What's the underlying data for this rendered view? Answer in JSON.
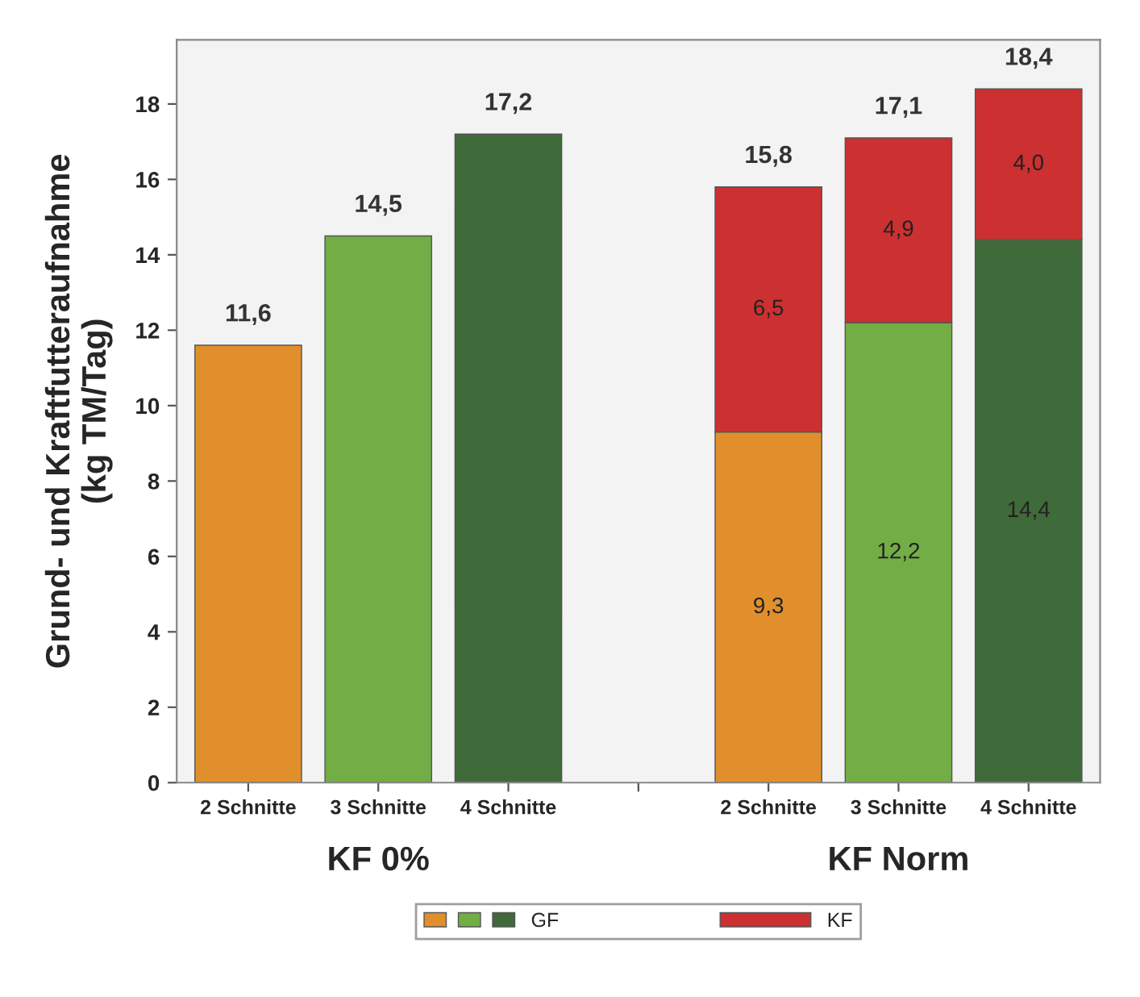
{
  "chart_data": {
    "type": "bar",
    "stacked": true,
    "ylabel": "Grund- und Kraftfutteraufnahme\n(kg TM/Tag)",
    "categories": [
      "2 Schnitte",
      "3 Schnitte",
      "4 Schnitte",
      null,
      "2 Schnitte",
      "3 Schnitte",
      "4 Schnitte"
    ],
    "series": [
      {
        "name": "GF",
        "colors": [
          "#e08f2c",
          "#72ad45",
          "#3f6a3a",
          null,
          "#e08f2c",
          "#72ad45",
          "#3f6a3a"
        ],
        "values": [
          11.6,
          14.5,
          17.2,
          null,
          9.3,
          12.2,
          14.4
        ],
        "value_labels": [
          null,
          null,
          null,
          null,
          "9,3",
          "12,2",
          "14,4"
        ]
      },
      {
        "name": "KF",
        "color": "#cc3030",
        "values": [
          null,
          null,
          null,
          null,
          6.5,
          4.9,
          4.0
        ],
        "value_labels": [
          null,
          null,
          null,
          null,
          "6,5",
          "4,9",
          "4,0"
        ]
      }
    ],
    "totals": [
      "11,6",
      "14,5",
      "17,2",
      null,
      "15,8",
      "17,1",
      "18,4"
    ],
    "annotations": [
      "KF 0%",
      "KF Norm"
    ],
    "ylim": [
      0,
      19.7
    ],
    "yticks": [
      0,
      2,
      4,
      6,
      8,
      10,
      12,
      14,
      16,
      18
    ],
    "grid": false,
    "legend": "bottom"
  }
}
